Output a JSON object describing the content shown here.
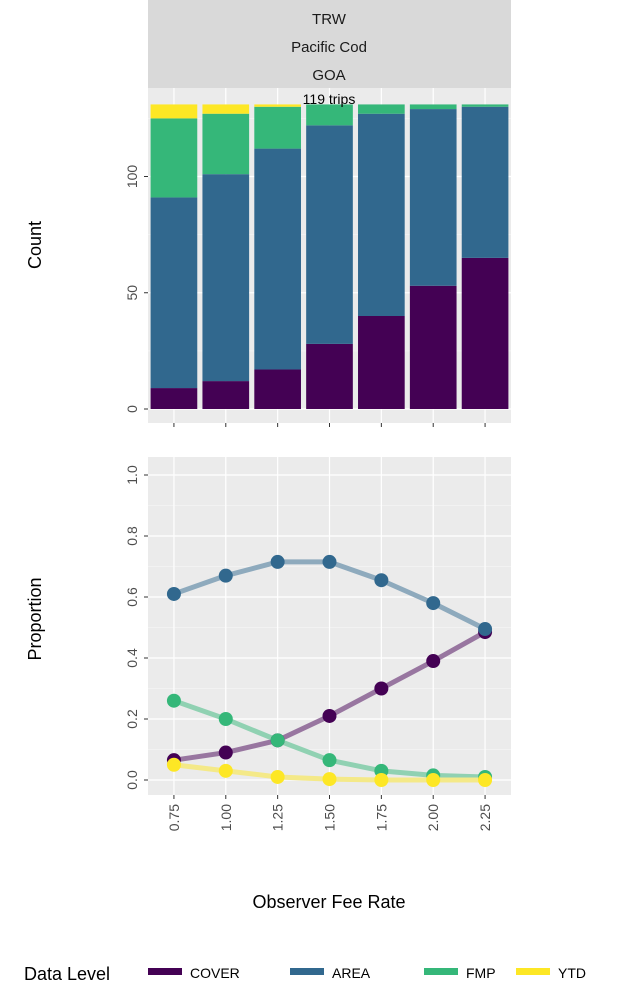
{
  "strip": {
    "line1": "TRW",
    "line2": "Pacific Cod",
    "line3": "GOA",
    "trips_label": "119 trips"
  },
  "legend": {
    "title": "Data Level",
    "items": [
      {
        "label": "COVER",
        "color": "#440154"
      },
      {
        "label": "AREA",
        "color": "#31688E"
      },
      {
        "label": "FMP",
        "color": "#35B779"
      },
      {
        "label": "YTD",
        "color": "#FDE725"
      }
    ]
  },
  "chart_data": [
    {
      "type": "bar",
      "stacked": true,
      "ylabel": "Count",
      "xlabel": "",
      "categories": [
        "0.75",
        "1.00",
        "1.25",
        "1.50",
        "1.75",
        "2.00",
        "2.25"
      ],
      "yticks": [
        "0",
        "50",
        "100"
      ],
      "ylim": [
        0,
        131
      ],
      "series": [
        {
          "name": "COVER",
          "color": "#440154",
          "values": [
            9,
            12,
            17,
            28,
            40,
            53,
            65
          ]
        },
        {
          "name": "AREA",
          "color": "#31688E",
          "values": [
            82,
            89,
            95,
            94,
            87,
            76,
            65
          ]
        },
        {
          "name": "FMP",
          "color": "#35B779",
          "values": [
            34,
            26,
            18,
            9,
            4,
            2,
            1
          ]
        },
        {
          "name": "YTD",
          "color": "#FDE725",
          "values": [
            6,
            4,
            1,
            0,
            0,
            0,
            0
          ]
        }
      ]
    },
    {
      "type": "line",
      "ylabel": "Proportion",
      "xlabel": "Observer Fee Rate",
      "x": [
        "0.75",
        "1.00",
        "1.25",
        "1.50",
        "1.75",
        "2.00",
        "2.25"
      ],
      "yticks": [
        "0.0",
        "0.2",
        "0.4",
        "0.6",
        "0.8",
        "1.0"
      ],
      "ylim": [
        0,
        1.05
      ],
      "series": [
        {
          "name": "COVER",
          "color": "#440154",
          "values": [
            0.065,
            0.09,
            0.13,
            0.21,
            0.3,
            0.39,
            0.485
          ]
        },
        {
          "name": "AREA",
          "color": "#31688E",
          "values": [
            0.61,
            0.67,
            0.715,
            0.715,
            0.655,
            0.58,
            0.495
          ]
        },
        {
          "name": "FMP",
          "color": "#35B779",
          "values": [
            0.26,
            0.2,
            0.13,
            0.065,
            0.03,
            0.015,
            0.01
          ]
        },
        {
          "name": "YTD",
          "color": "#FDE725",
          "values": [
            0.05,
            0.03,
            0.01,
            0.003,
            0.0,
            0.0,
            0.0
          ]
        }
      ]
    }
  ]
}
